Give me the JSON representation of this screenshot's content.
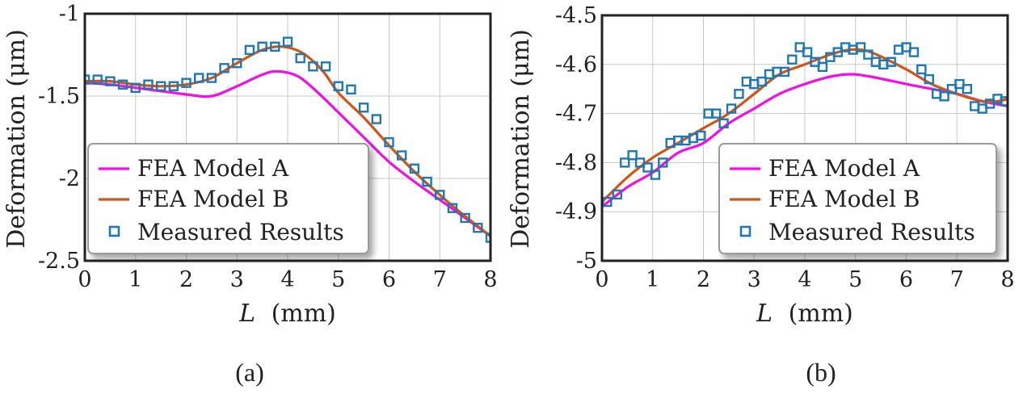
{
  "colors": {
    "model_a": "#f20ee6",
    "model_b": "#cf5518",
    "measured": "#1f78b4",
    "grid": "#c8c8c8",
    "frame": "#222222"
  },
  "chart_data": [
    {
      "type": "line",
      "panel": "(a)",
      "xlabel_var": "L",
      "xlabel_unit": "(mm)",
      "ylabel": "Deformation (μm)",
      "xlim": [
        0,
        8
      ],
      "ylim": [
        -2.5,
        -1
      ],
      "xticks": [
        0,
        1,
        2,
        3,
        4,
        5,
        6,
        7,
        8
      ],
      "xtick_labels": [
        "0",
        "1",
        "2",
        "3",
        "4",
        "5",
        "6",
        "7",
        "8"
      ],
      "yticks": [
        -1,
        -1.5,
        -2,
        -2.5
      ],
      "ytick_labels": [
        "-1",
        "-1.5",
        "-2",
        "-2.5"
      ],
      "legend_position": "bottom-left",
      "series": [
        {
          "name": "FEA Model A",
          "kind": "line",
          "x": [
            0,
            0.5,
            1,
            1.5,
            2,
            2.5,
            3,
            3.5,
            3.8,
            4.2,
            4.6,
            5,
            5.5,
            6,
            6.5,
            7,
            7.5,
            8
          ],
          "y": [
            -1.42,
            -1.43,
            -1.45,
            -1.47,
            -1.49,
            -1.5,
            -1.44,
            -1.37,
            -1.35,
            -1.38,
            -1.48,
            -1.6,
            -1.75,
            -1.9,
            -2.02,
            -2.13,
            -2.24,
            -2.35
          ]
        },
        {
          "name": "FEA Model B",
          "kind": "line",
          "x": [
            0,
            0.5,
            1,
            1.5,
            2,
            2.5,
            3,
            3.5,
            3.9,
            4.3,
            4.7,
            5,
            5.5,
            6,
            6.5,
            7,
            7.5,
            8
          ],
          "y": [
            -1.41,
            -1.41,
            -1.43,
            -1.44,
            -1.43,
            -1.39,
            -1.3,
            -1.22,
            -1.2,
            -1.24,
            -1.35,
            -1.48,
            -1.63,
            -1.8,
            -1.96,
            -2.1,
            -2.23,
            -2.35
          ]
        },
        {
          "name": "Measured Results",
          "kind": "scatter",
          "x": [
            0,
            0.25,
            0.5,
            0.75,
            1,
            1.25,
            1.5,
            1.75,
            2,
            2.25,
            2.5,
            2.75,
            3,
            3.25,
            3.5,
            3.75,
            4,
            4.25,
            4.5,
            4.75,
            5,
            5.25,
            5.5,
            5.75,
            6,
            6.25,
            6.5,
            6.75,
            7,
            7.25,
            7.5,
            7.75,
            8
          ],
          "y": [
            -1.4,
            -1.4,
            -1.41,
            -1.43,
            -1.45,
            -1.43,
            -1.44,
            -1.44,
            -1.42,
            -1.39,
            -1.39,
            -1.33,
            -1.3,
            -1.22,
            -1.2,
            -1.2,
            -1.17,
            -1.27,
            -1.32,
            -1.32,
            -1.44,
            -1.46,
            -1.57,
            -1.64,
            -1.78,
            -1.86,
            -1.94,
            -2.02,
            -2.1,
            -2.18,
            -2.24,
            -2.3,
            -2.36
          ]
        }
      ]
    },
    {
      "type": "line",
      "panel": "(b)",
      "xlabel_var": "L",
      "xlabel_unit": "(mm)",
      "ylabel": "Deformation (μm)",
      "xlim": [
        0,
        8
      ],
      "ylim": [
        -5,
        -4.5
      ],
      "xticks": [
        0,
        1,
        2,
        3,
        4,
        5,
        6,
        7,
        8
      ],
      "xtick_labels": [
        "0",
        "1",
        "2",
        "3",
        "4",
        "5",
        "6",
        "7",
        "8"
      ],
      "yticks": [
        -4.5,
        -4.6,
        -4.7,
        -4.8,
        -4.9,
        -5
      ],
      "ytick_labels": [
        "-4.5",
        "-4.6",
        "-4.7",
        "-4.8",
        "-4.9",
        "-5"
      ],
      "legend_position": "bottom-right",
      "series": [
        {
          "name": "FEA Model A",
          "kind": "line",
          "x": [
            0,
            0.5,
            1,
            1.5,
            2,
            2.5,
            3,
            3.5,
            4,
            4.5,
            4.9,
            5.3,
            6,
            6.5,
            7,
            7.5,
            8
          ],
          "y": [
            -4.89,
            -4.85,
            -4.82,
            -4.78,
            -4.76,
            -4.72,
            -4.69,
            -4.66,
            -4.64,
            -4.625,
            -4.62,
            -4.625,
            -4.64,
            -4.65,
            -4.66,
            -4.675,
            -4.685
          ]
        },
        {
          "name": "FEA Model B",
          "kind": "line",
          "x": [
            0,
            0.5,
            1,
            1.5,
            2,
            2.5,
            3,
            3.5,
            4,
            4.5,
            4.9,
            5.3,
            6,
            6.5,
            7,
            7.5,
            7.8,
            8
          ],
          "y": [
            -4.88,
            -4.83,
            -4.79,
            -4.76,
            -4.73,
            -4.7,
            -4.66,
            -4.62,
            -4.6,
            -4.58,
            -4.57,
            -4.575,
            -4.61,
            -4.64,
            -4.66,
            -4.675,
            -4.675,
            -4.67
          ]
        },
        {
          "name": "Measured Results",
          "kind": "scatter",
          "x": [
            0.1,
            0.3,
            0.45,
            0.6,
            0.75,
            0.9,
            1.05,
            1.2,
            1.35,
            1.5,
            1.65,
            1.8,
            1.95,
            2.1,
            2.25,
            2.4,
            2.55,
            2.7,
            2.85,
            3.0,
            3.15,
            3.3,
            3.45,
            3.6,
            3.75,
            3.9,
            4.05,
            4.2,
            4.35,
            4.5,
            4.65,
            4.8,
            4.95,
            5.1,
            5.25,
            5.4,
            5.55,
            5.7,
            5.85,
            6.0,
            6.15,
            6.3,
            6.45,
            6.6,
            6.75,
            6.9,
            7.05,
            7.2,
            7.35,
            7.5,
            7.65,
            7.8,
            7.95
          ],
          "y": [
            -4.88,
            -4.865,
            -4.8,
            -4.785,
            -4.8,
            -4.81,
            -4.825,
            -4.8,
            -4.76,
            -4.755,
            -4.755,
            -4.75,
            -4.745,
            -4.7,
            -4.7,
            -4.72,
            -4.69,
            -4.66,
            -4.635,
            -4.64,
            -4.635,
            -4.62,
            -4.615,
            -4.615,
            -4.59,
            -4.565,
            -4.575,
            -4.595,
            -4.605,
            -4.585,
            -4.575,
            -4.565,
            -4.57,
            -4.565,
            -4.58,
            -4.595,
            -4.6,
            -4.595,
            -4.57,
            -4.565,
            -4.575,
            -4.61,
            -4.63,
            -4.66,
            -4.665,
            -4.65,
            -4.64,
            -4.65,
            -4.685,
            -4.69,
            -4.68,
            -4.67,
            -4.675
          ]
        }
      ]
    }
  ]
}
